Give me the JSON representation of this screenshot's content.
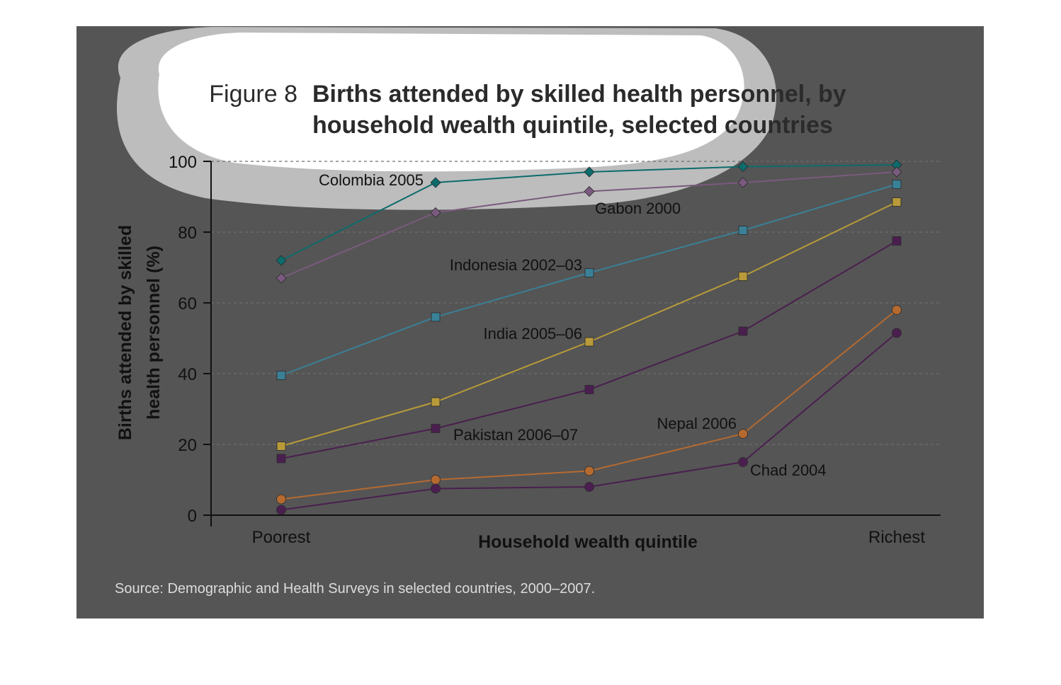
{
  "figure": {
    "prefix": "Figure 8",
    "title_line1": "Births attended by skilled health personnel, by",
    "title_line2": "household wealth quintile, selected countries"
  },
  "source": "Source: Demographic and Health Surveys in selected countries, 2000–2007.",
  "chart_data": {
    "type": "line",
    "title": "Births attended by skilled health personnel, by household wealth quintile, selected countries",
    "xlabel": "Household wealth quintile",
    "ylabel_line1": "Births attended by skilled",
    "ylabel_line2": "health personnel (%)",
    "ylim": [
      0,
      100
    ],
    "yticks": [
      0,
      20,
      40,
      60,
      80,
      100
    ],
    "x_tick_labels": [
      "Poorest",
      "",
      "",
      "",
      "Richest"
    ],
    "categories": [
      1,
      2,
      3,
      4,
      5
    ],
    "grid": true,
    "series": [
      {
        "name": "Colombia 2005",
        "marker": "diamond",
        "color": "#0d6b6b",
        "values": [
          72,
          94,
          97,
          98.5,
          99
        ]
      },
      {
        "name": "Gabon 2000",
        "marker": "diamond",
        "color": "#7a5a7e",
        "values": [
          67,
          85.5,
          91.5,
          94,
          97
        ]
      },
      {
        "name": "Indonesia 2002–03",
        "marker": "square",
        "color": "#3a8097",
        "values": [
          39.5,
          56,
          68.5,
          80.5,
          93.5
        ]
      },
      {
        "name": "India 2005–06",
        "marker": "square",
        "color": "#b89a3a",
        "values": [
          19.5,
          32,
          49,
          67.5,
          88.5
        ]
      },
      {
        "name": "Pakistan 2006–07",
        "marker": "square",
        "color": "#4a1f4f",
        "values": [
          16,
          24.5,
          35.5,
          52,
          77.5
        ]
      },
      {
        "name": "Nepal 2006",
        "marker": "circle",
        "color": "#b56a30",
        "values": [
          4.5,
          10,
          12.5,
          23,
          58
        ]
      },
      {
        "name": "Chad 2004",
        "marker": "circle",
        "color": "#4a1f4f",
        "values": [
          1.5,
          7.5,
          8,
          15,
          51.5
        ]
      }
    ]
  }
}
